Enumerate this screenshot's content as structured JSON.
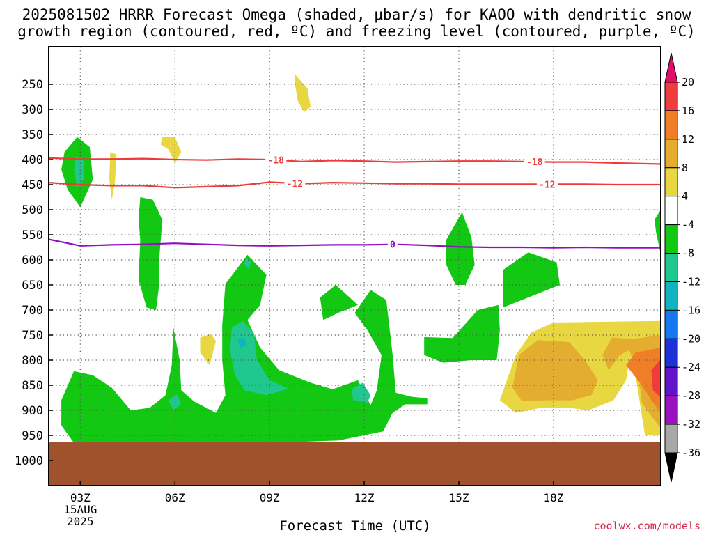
{
  "title": {
    "line1": "2025081502 HRRR Forecast Omega (shaded, μbar/s) for KAOO with dendritic snow",
    "line2": "growth region (contoured, red, ºC) and freezing level (contoured, purple, ºC)"
  },
  "xaxis_title": "Forecast Time (UTC)",
  "credit": "coolwx.com/models",
  "chart_data": {
    "type": "time-height cross section",
    "x": {
      "unit": "hour UTC (15 AUG 2025)",
      "range": [
        2,
        21.4
      ],
      "ticks": [
        {
          "hour": 3,
          "label": "03Z",
          "sub1": "15AUG",
          "sub2": "2025"
        },
        {
          "hour": 6,
          "label": "06Z"
        },
        {
          "hour": 9,
          "label": "09Z"
        },
        {
          "hour": 12,
          "label": "12Z"
        },
        {
          "hour": 15,
          "label": "15Z"
        },
        {
          "hour": 18,
          "label": "18Z"
        }
      ]
    },
    "y": {
      "unit": "hPa",
      "range": [
        1050,
        175
      ],
      "ticks": [
        250,
        300,
        350,
        400,
        450,
        500,
        550,
        600,
        650,
        700,
        750,
        800,
        850,
        900,
        950,
        1000
      ]
    },
    "grid": true,
    "ground": {
      "color": "#a0522d",
      "top_hpa": 963
    },
    "colorbar": {
      "levels": [
        20,
        16,
        12,
        8,
        4,
        -4,
        -8,
        -12,
        -16,
        -20,
        -24,
        -28,
        -32,
        -36
      ],
      "colors": [
        "#e0106a",
        "#f03c3c",
        "#ee7f27",
        "#e5ad30",
        "#e8d740",
        "#ffffff",
        "#12c812",
        "#20c890",
        "#10b4c0",
        "#1478f0",
        "#1e32d8",
        "#6414c8",
        "#9a12c0",
        "#a8a8a8",
        "#000000"
      ]
    },
    "contours": [
      {
        "name": "-18",
        "color": "#ee3a3a",
        "points": [
          [
            2,
            397
          ],
          [
            3,
            399
          ],
          [
            4,
            399
          ],
          [
            5,
            398
          ],
          [
            6,
            400
          ],
          [
            7,
            401
          ],
          [
            8,
            399
          ],
          [
            9,
            400
          ],
          [
            10,
            404
          ],
          [
            11,
            402
          ],
          [
            12,
            403
          ],
          [
            13,
            405
          ],
          [
            14,
            404
          ],
          [
            15,
            403
          ],
          [
            16,
            403
          ],
          [
            17,
            404
          ],
          [
            18,
            405
          ],
          [
            19,
            405
          ],
          [
            20,
            407
          ],
          [
            21.4,
            409
          ]
        ],
        "labels": [
          {
            "hour": 9.2,
            "hpa": 401,
            "text": "-18"
          },
          {
            "hour": 17.4,
            "hpa": 404,
            "text": "-18"
          }
        ]
      },
      {
        "name": "-12",
        "color": "#ee3a3a",
        "points": [
          [
            2,
            446
          ],
          [
            3,
            450
          ],
          [
            4,
            452
          ],
          [
            5,
            452
          ],
          [
            6,
            456
          ],
          [
            7,
            454
          ],
          [
            8,
            452
          ],
          [
            9,
            445
          ],
          [
            10,
            448
          ],
          [
            11,
            446
          ],
          [
            12,
            447
          ],
          [
            13,
            448
          ],
          [
            14,
            448
          ],
          [
            15,
            449
          ],
          [
            16,
            449
          ],
          [
            17,
            449
          ],
          [
            18,
            449
          ],
          [
            19,
            449
          ],
          [
            20,
            450
          ],
          [
            21.4,
            450
          ]
        ],
        "labels": [
          {
            "hour": 9.8,
            "hpa": 448,
            "text": "-12"
          },
          {
            "hour": 17.8,
            "hpa": 449,
            "text": "-12"
          }
        ]
      },
      {
        "name": "0",
        "color": "#9010c0",
        "points": [
          [
            2,
            559
          ],
          [
            3,
            572
          ],
          [
            4,
            570
          ],
          [
            5,
            569
          ],
          [
            6,
            567
          ],
          [
            7,
            569
          ],
          [
            8,
            571
          ],
          [
            9,
            572
          ],
          [
            10,
            571
          ],
          [
            11,
            570
          ],
          [
            12,
            570
          ],
          [
            13,
            569
          ],
          [
            14,
            571
          ],
          [
            15,
            574
          ],
          [
            16,
            575
          ],
          [
            17,
            575
          ],
          [
            18,
            576
          ],
          [
            19,
            575
          ],
          [
            20,
            576
          ],
          [
            21.4,
            576
          ]
        ],
        "labels": [
          {
            "hour": 12.9,
            "hpa": 569,
            "text": "0"
          }
        ]
      }
    ],
    "shaded_regions": [
      {
        "level": -4,
        "color": "#12c812",
        "points": [
          [
            2.5,
            385
          ],
          [
            2.9,
            355
          ],
          [
            3.3,
            375
          ],
          [
            3.4,
            440
          ],
          [
            3,
            495
          ],
          [
            2.6,
            460
          ],
          [
            2.4,
            420
          ]
        ]
      },
      {
        "level": -8,
        "color": "#20c890",
        "points": [
          [
            2.85,
            395
          ],
          [
            3.1,
            400
          ],
          [
            3.1,
            440
          ],
          [
            2.9,
            455
          ],
          [
            2.8,
            420
          ]
        ]
      },
      {
        "level": 4,
        "color": "#e8d740",
        "points": [
          [
            3.95,
            385
          ],
          [
            4.15,
            390
          ],
          [
            4.1,
            445
          ],
          [
            4,
            480
          ],
          [
            3.92,
            440
          ]
        ]
      },
      {
        "level": 4,
        "color": "#e8d740",
        "points": [
          [
            5.6,
            355
          ],
          [
            6,
            355
          ],
          [
            6.2,
            385
          ],
          [
            6,
            408
          ],
          [
            5.8,
            380
          ],
          [
            5.55,
            370
          ]
        ]
      },
      {
        "level": 4,
        "color": "#e8d740",
        "points": [
          [
            9.8,
            230
          ],
          [
            10.2,
            258
          ],
          [
            10.3,
            295
          ],
          [
            10.1,
            305
          ],
          [
            9.9,
            285
          ],
          [
            9.82,
            255
          ]
        ]
      },
      {
        "level": -4,
        "color": "#12c812",
        "points": [
          [
            4.9,
            475
          ],
          [
            5.3,
            480
          ],
          [
            5.6,
            520
          ],
          [
            5.5,
            600
          ],
          [
            5.5,
            650
          ],
          [
            5.4,
            700
          ],
          [
            5.1,
            695
          ],
          [
            4.85,
            640
          ],
          [
            4.9,
            560
          ],
          [
            4.85,
            520
          ]
        ]
      },
      {
        "level": 4,
        "color": "#e8d740",
        "points": [
          [
            6.8,
            755
          ],
          [
            7.15,
            748
          ],
          [
            7.3,
            762
          ],
          [
            7.1,
            810
          ],
          [
            6.8,
            785
          ]
        ]
      },
      {
        "level": -4,
        "color": "#12c812",
        "points": [
          [
            2.4,
            880
          ],
          [
            2.8,
            822
          ],
          [
            3.4,
            830
          ],
          [
            4,
            855
          ],
          [
            4.6,
            900
          ],
          [
            5.2,
            895
          ],
          [
            5.7,
            870
          ],
          [
            5.9,
            810
          ],
          [
            5.95,
            735
          ],
          [
            6.15,
            800
          ],
          [
            6.2,
            860
          ],
          [
            6.6,
            882
          ],
          [
            7.3,
            905
          ],
          [
            7.6,
            870
          ],
          [
            7.5,
            800
          ],
          [
            7.5,
            730
          ],
          [
            7.6,
            648
          ],
          [
            8.3,
            590
          ],
          [
            8.9,
            630
          ],
          [
            8.7,
            690
          ],
          [
            8.3,
            720
          ],
          [
            8.7,
            775
          ],
          [
            9.3,
            820
          ],
          [
            10.3,
            845
          ],
          [
            11,
            858
          ],
          [
            11.8,
            840
          ],
          [
            12.2,
            890
          ],
          [
            12.4,
            860
          ],
          [
            12.55,
            790
          ],
          [
            12.1,
            740
          ],
          [
            11.7,
            706
          ],
          [
            12.2,
            660
          ],
          [
            12.7,
            680
          ],
          [
            12.9,
            790
          ],
          [
            13,
            865
          ],
          [
            13.5,
            873
          ],
          [
            14,
            876
          ],
          [
            14,
            888
          ],
          [
            13.3,
            888
          ],
          [
            12.9,
            905
          ],
          [
            12.6,
            942
          ],
          [
            11.2,
            960
          ],
          [
            9.9,
            963
          ],
          [
            8.8,
            963
          ],
          [
            6.4,
            963
          ],
          [
            4.7,
            965
          ],
          [
            3.5,
            965
          ],
          [
            2.8,
            965
          ],
          [
            2.4,
            930
          ]
        ]
      },
      {
        "level": -8,
        "color": "#20c890",
        "points": [
          [
            7.8,
            735
          ],
          [
            8.15,
            722
          ],
          [
            8.5,
            745
          ],
          [
            8.6,
            800
          ],
          [
            9,
            840
          ],
          [
            9.6,
            857
          ],
          [
            8.9,
            870
          ],
          [
            8.2,
            860
          ],
          [
            7.9,
            830
          ],
          [
            7.75,
            780
          ]
        ]
      },
      {
        "level": -8,
        "color": "#20c890",
        "points": [
          [
            5.8,
            880
          ],
          [
            6.05,
            868
          ],
          [
            6.2,
            886
          ],
          [
            5.95,
            900
          ]
        ]
      },
      {
        "level": -8,
        "color": "#20c890",
        "points": [
          [
            11.6,
            858
          ],
          [
            11.95,
            845
          ],
          [
            12.2,
            870
          ],
          [
            12.1,
            885
          ],
          [
            11.65,
            880
          ]
        ]
      },
      {
        "level": -8,
        "color": "#20c890",
        "points": [
          [
            8.25,
            595
          ],
          [
            8.42,
            605
          ],
          [
            8.33,
            618
          ],
          [
            8.2,
            608
          ]
        ]
      },
      {
        "level": -12,
        "color": "#10b4c0",
        "points": [
          [
            8.0,
            758
          ],
          [
            8.2,
            755
          ],
          [
            8.25,
            770
          ],
          [
            8.05,
            775
          ]
        ]
      },
      {
        "level": -4,
        "color": "#12c812",
        "points": [
          [
            10.6,
            675
          ],
          [
            11.1,
            650
          ],
          [
            11.8,
            690
          ],
          [
            11.2,
            705
          ],
          [
            10.7,
            720
          ]
        ]
      },
      {
        "level": -4,
        "color": "#12c812",
        "points": [
          [
            13.9,
            754
          ],
          [
            14.8,
            756
          ],
          [
            15.6,
            700
          ],
          [
            16.25,
            690
          ],
          [
            16.3,
            740
          ],
          [
            16.2,
            800
          ],
          [
            15.4,
            800
          ],
          [
            14.5,
            805
          ],
          [
            13.9,
            790
          ]
        ]
      },
      {
        "level": -4,
        "color": "#12c812",
        "points": [
          [
            14.6,
            560
          ],
          [
            15.1,
            505
          ],
          [
            15.4,
            555
          ],
          [
            15.5,
            610
          ],
          [
            15.2,
            650
          ],
          [
            14.9,
            650
          ],
          [
            14.6,
            610
          ]
        ]
      },
      {
        "level": -4,
        "color": "#12c812",
        "points": [
          [
            16.4,
            620
          ],
          [
            17.2,
            585
          ],
          [
            18.1,
            605
          ],
          [
            18.2,
            650
          ],
          [
            17.4,
            670
          ],
          [
            16.4,
            695
          ]
        ]
      },
      {
        "level": -4,
        "color": "#12c812",
        "points": [
          [
            21.2,
            520
          ],
          [
            21.4,
            500
          ],
          [
            21.4,
            590
          ],
          [
            21.25,
            545
          ]
        ]
      },
      {
        "level": 4,
        "color": "#e8d740",
        "points": [
          [
            16.3,
            880
          ],
          [
            16.8,
            790
          ],
          [
            17.3,
            745
          ],
          [
            18,
            725
          ],
          [
            21.4,
            722
          ],
          [
            21.4,
            950
          ],
          [
            20.9,
            950
          ],
          [
            20.7,
            870
          ],
          [
            20.6,
            830
          ],
          [
            20.4,
            800
          ],
          [
            20.3,
            840
          ],
          [
            19.9,
            880
          ],
          [
            19.1,
            900
          ],
          [
            18.5,
            895
          ],
          [
            17.6,
            895
          ],
          [
            16.8,
            905
          ]
        ]
      },
      {
        "level": 8,
        "color": "#e5ad30",
        "points": [
          [
            16.7,
            855
          ],
          [
            16.9,
            790
          ],
          [
            17.5,
            760
          ],
          [
            18.5,
            764
          ],
          [
            19,
            800
          ],
          [
            19.4,
            840
          ],
          [
            19.2,
            870
          ],
          [
            18.6,
            880
          ],
          [
            17.8,
            880
          ],
          [
            17,
            882
          ]
        ]
      },
      {
        "level": 8,
        "color": "#e5ad30",
        "points": [
          [
            19.55,
            790
          ],
          [
            19.85,
            755
          ],
          [
            20.5,
            758
          ],
          [
            21.4,
            750
          ],
          [
            21.4,
            935
          ],
          [
            21.2,
            920
          ],
          [
            20.8,
            885
          ],
          [
            20.7,
            830
          ],
          [
            20.4,
            780
          ],
          [
            20.1,
            790
          ],
          [
            19.75,
            820
          ]
        ]
      },
      {
        "level": 12,
        "color": "#ee7f27",
        "points": [
          [
            20.3,
            810
          ],
          [
            20.6,
            785
          ],
          [
            21.4,
            775
          ],
          [
            21.4,
            905
          ],
          [
            21.1,
            880
          ],
          [
            20.8,
            850
          ]
        ]
      },
      {
        "level": 16,
        "color": "#f03c3c",
        "points": [
          [
            21.1,
            820
          ],
          [
            21.4,
            798
          ],
          [
            21.4,
            875
          ],
          [
            21.15,
            860
          ]
        ]
      }
    ]
  }
}
